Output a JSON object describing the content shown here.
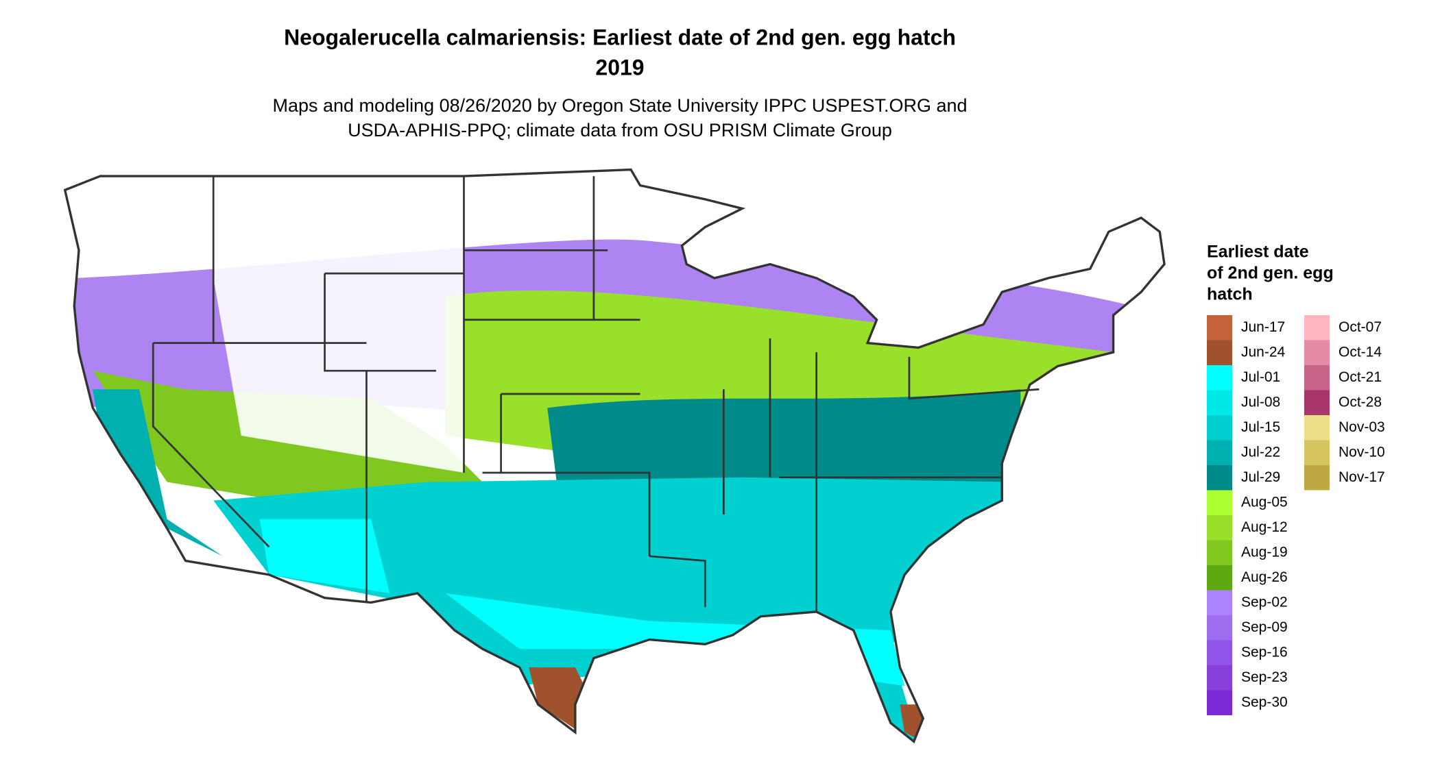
{
  "header": {
    "title_lines": [
      "Neogalerucella calmariensis: Earliest date of 2nd gen. egg hatch",
      "2019"
    ],
    "subtitle_lines": [
      "Maps and modeling 08/26/2020 by Oregon State University IPPC USPEST.ORG and",
      "USDA-APHIS-PPQ; climate data from OSU PRISM Climate Group"
    ]
  },
  "legend": {
    "title_lines": [
      "Earliest date",
      "of 2nd gen. egg",
      "hatch"
    ],
    "items": [
      {
        "label": "Jun-17",
        "color": "#c4633a"
      },
      {
        "label": "Jun-24",
        "color": "#a0522d"
      },
      {
        "label": "Jul-01",
        "color": "#00ffff"
      },
      {
        "label": "Jul-08",
        "color": "#00e8e8"
      },
      {
        "label": "Jul-15",
        "color": "#00d0d0"
      },
      {
        "label": "Jul-22",
        "color": "#00b0b0"
      },
      {
        "label": "Jul-29",
        "color": "#008b8b"
      },
      {
        "label": "Aug-05",
        "color": "#adff2f"
      },
      {
        "label": "Aug-12",
        "color": "#98e02a"
      },
      {
        "label": "Aug-19",
        "color": "#7ec820"
      },
      {
        "label": "Aug-26",
        "color": "#5ea812"
      },
      {
        "label": "Sep-02",
        "color": "#ab82ff"
      },
      {
        "label": "Sep-09",
        "color": "#9f6ef0"
      },
      {
        "label": "Sep-16",
        "color": "#9055e8"
      },
      {
        "label": "Sep-23",
        "color": "#8840dc"
      },
      {
        "label": "Sep-30",
        "color": "#7b2ad6"
      },
      {
        "label": "Oct-07",
        "color": "#ffb6c1"
      },
      {
        "label": "Oct-14",
        "color": "#e48ca6"
      },
      {
        "label": "Oct-21",
        "color": "#c8648a"
      },
      {
        "label": "Oct-28",
        "color": "#a8366a"
      },
      {
        "label": "Nov-03",
        "color": "#eee08a"
      },
      {
        "label": "Nov-10",
        "color": "#d6c460"
      },
      {
        "label": "Nov-17",
        "color": "#bfa842"
      }
    ]
  }
}
